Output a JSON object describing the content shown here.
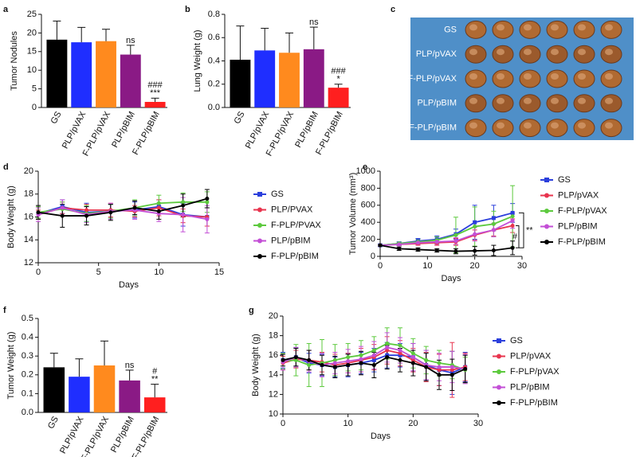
{
  "chart_data": [
    {
      "type": "bar",
      "panel": "a",
      "ylabel": "Tumor Nodules",
      "categories": [
        "GS",
        "PLP/pVAX",
        "F-PLP/pVAX",
        "PLP/pBIM",
        "F-PLP/pBIM"
      ],
      "values": [
        18.2,
        17.5,
        17.8,
        14.2,
        1.5
      ],
      "errors": [
        5,
        4,
        3.2,
        2.5,
        1
      ],
      "colors": [
        "#000000",
        "#1f2eff",
        "#ff8a1e",
        "#8a1a85",
        "#ff1f1f"
      ],
      "annotations": [
        null,
        null,
        null,
        [
          "ns"
        ],
        [
          "###",
          "***"
        ]
      ],
      "ylim": [
        0,
        25
      ],
      "yticks": [
        0,
        5,
        10,
        15,
        20,
        25
      ]
    },
    {
      "type": "bar",
      "panel": "b",
      "ylabel": "Lung Weight (g)",
      "categories": [
        "GS",
        "PLP/pVAX",
        "F-PLP/pVAX",
        "PLP/pBIM",
        "F-PLP/pBIM"
      ],
      "values": [
        0.41,
        0.49,
        0.47,
        0.5,
        0.17
      ],
      "errors": [
        0.29,
        0.19,
        0.17,
        0.19,
        0.03
      ],
      "colors": [
        "#000000",
        "#1f2eff",
        "#ff8a1e",
        "#8a1a85",
        "#ff1f1f"
      ],
      "annotations": [
        null,
        null,
        null,
        [
          "ns"
        ],
        [
          "###",
          "*"
        ]
      ],
      "ylim": [
        0,
        0.8
      ],
      "yticks": [
        {
          "value": 0,
          "label": "0.0"
        },
        0.2,
        0.4,
        0.6,
        0.8
      ]
    },
    {
      "type": "photo",
      "panel": "c",
      "row_labels": [
        "GS",
        "PLP/pVAX",
        "F-PLP/pVAX",
        "PLP/pBIM",
        "F-PLP/pBIM"
      ]
    },
    {
      "type": "line",
      "panel": "d",
      "xlabel": "Days",
      "ylabel": "Body Weight (g)",
      "x": [
        0,
        2,
        4,
        6,
        8,
        10,
        12,
        14
      ],
      "xlim": [
        0,
        15
      ],
      "xticks": [
        0,
        5,
        10,
        15
      ],
      "ylim": [
        12,
        20
      ],
      "yticks": [
        12,
        14,
        16,
        18,
        20
      ],
      "series": [
        {
          "name": "GS",
          "color": "#2b3fdc",
          "values": [
            16.3,
            16.9,
            16.4,
            16.5,
            16.6,
            16.9,
            16.2,
            16.0
          ],
          "errors": [
            0.5,
            0.6,
            0.8,
            0.6,
            0.7,
            0.6,
            1.0,
            0.8
          ]
        },
        {
          "name": "PLP/PVAX",
          "color": "#e8344e",
          "values": [
            16.2,
            16.8,
            16.6,
            16.6,
            16.5,
            16.8,
            16.1,
            16.0
          ],
          "errors": [
            0.4,
            0.5,
            0.5,
            0.6,
            0.5,
            0.7,
            0.6,
            0.8
          ]
        },
        {
          "name": "F-PLP/PVAX",
          "color": "#5cc93d",
          "values": [
            16.4,
            16.7,
            16.3,
            16.5,
            16.8,
            17.2,
            17.3,
            17.3
          ],
          "errors": [
            0.5,
            0.6,
            0.7,
            0.6,
            0.7,
            0.7,
            0.8,
            0.9
          ]
        },
        {
          "name": "PLP/pBIM",
          "color": "#c34fd6",
          "values": [
            16.2,
            16.8,
            16.2,
            16.5,
            16.6,
            16.3,
            16.2,
            15.8
          ],
          "errors": [
            0.6,
            0.7,
            0.7,
            0.7,
            0.8,
            0.7,
            1.5,
            1.2
          ]
        },
        {
          "name": "F-PLP/pBIM",
          "color": "#000000",
          "values": [
            16.4,
            16.1,
            16.1,
            16.4,
            16.8,
            16.5,
            17.0,
            17.6
          ],
          "errors": [
            0.6,
            1.0,
            0.8,
            0.7,
            0.6,
            0.7,
            1.0,
            0.8
          ]
        }
      ]
    },
    {
      "type": "line",
      "panel": "e",
      "xlabel": "Days",
      "ylabel": "Tumor Volume (mm³)",
      "x": [
        0,
        4,
        8,
        12,
        16,
        20,
        24,
        28
      ],
      "xlim": [
        0,
        30
      ],
      "xticks": [
        0,
        10,
        20,
        30
      ],
      "ylim": [
        0,
        1000
      ],
      "yticks": [
        0,
        200,
        400,
        600,
        800,
        1000
      ],
      "annotations": [
        "#",
        "**"
      ],
      "series": [
        {
          "name": "GS",
          "color": "#2b3fdc",
          "values": [
            130,
            150,
            180,
            200,
            260,
            400,
            450,
            510
          ],
          "errors": [
            10,
            20,
            30,
            40,
            60,
            200,
            150,
            110
          ]
        },
        {
          "name": "PLP/pVAX",
          "color": "#e8344e",
          "values": [
            130,
            140,
            150,
            160,
            170,
            250,
            310,
            360
          ],
          "errors": [
            10,
            15,
            20,
            30,
            40,
            60,
            70,
            80
          ]
        },
        {
          "name": "F-PLP/pVAX",
          "color": "#5cc93d",
          "values": [
            130,
            150,
            170,
            190,
            250,
            350,
            380,
            470
          ],
          "errors": [
            10,
            20,
            30,
            40,
            210,
            230,
            150,
            360
          ]
        },
        {
          "name": "PLP/pBIM",
          "color": "#c34fd6",
          "values": [
            130,
            140,
            160,
            170,
            180,
            260,
            310,
            420
          ],
          "errors": [
            10,
            15,
            25,
            30,
            40,
            80,
            80,
            90
          ]
        },
        {
          "name": "F-PLP/pBIM",
          "color": "#000000",
          "values": [
            130,
            90,
            80,
            70,
            60,
            65,
            70,
            100
          ],
          "errors": [
            10,
            20,
            20,
            20,
            30,
            50,
            60,
            80
          ]
        }
      ]
    },
    {
      "type": "bar",
      "panel": "f",
      "ylabel": "Tumor Weight (g)",
      "categories": [
        "GS",
        "PLP/pVAX",
        "F-PLP/pVAX",
        "PLP/pBIM",
        "F-PLP/pBIM"
      ],
      "values": [
        0.24,
        0.19,
        0.25,
        0.17,
        0.08
      ],
      "errors": [
        0.075,
        0.095,
        0.13,
        0.055,
        0.07
      ],
      "colors": [
        "#000000",
        "#1f2eff",
        "#ff8a1e",
        "#8a1a85",
        "#ff1f1f"
      ],
      "annotations": [
        null,
        null,
        null,
        [
          "ns"
        ],
        [
          "#",
          "**"
        ]
      ],
      "ylim": [
        0,
        0.5
      ],
      "yticks": [
        {
          "value": 0,
          "label": "0.0"
        },
        0.1,
        0.2,
        0.3,
        0.4,
        0.5
      ]
    },
    {
      "type": "line",
      "panel": "g",
      "xlabel": "Days",
      "ylabel": "Body Weight (g)",
      "x": [
        0,
        2,
        4,
        6,
        8,
        10,
        12,
        14,
        16,
        18,
        20,
        22,
        24,
        26,
        28
      ],
      "xlim": [
        0,
        30
      ],
      "xticks": [
        0,
        10,
        20,
        30
      ],
      "ylim": [
        10,
        20
      ],
      "yticks": [
        10,
        12,
        14,
        16,
        18,
        20
      ],
      "series": [
        {
          "name": "GS",
          "color": "#2b3fdc",
          "values": [
            15.5,
            15.8,
            15.2,
            15.0,
            14.8,
            15.0,
            15.2,
            15.5,
            16.0,
            16.0,
            15.8,
            15.0,
            14.5,
            14.2,
            14.8
          ],
          "errors": [
            0.8,
            1.0,
            1.0,
            1.1,
            1.0,
            1.2,
            1.1,
            1.2,
            1.3,
            1.2,
            1.4,
            1.5,
            1.6,
            2.2,
            1.5
          ]
        },
        {
          "name": "PLP/pVAX",
          "color": "#e8344e",
          "values": [
            15.2,
            15.6,
            15.5,
            15.3,
            15.0,
            15.2,
            15.5,
            15.8,
            16.5,
            16.2,
            15.5,
            14.8,
            14.5,
            14.5,
            14.8
          ],
          "errors": [
            0.7,
            0.9,
            1.0,
            1.0,
            1.1,
            1.0,
            1.2,
            1.3,
            1.4,
            1.3,
            1.2,
            1.5,
            1.6,
            2.8,
            1.4
          ]
        },
        {
          "name": "F-PLP/pVAX",
          "color": "#5cc93d",
          "values": [
            15.4,
            15.5,
            15.0,
            15.2,
            15.5,
            15.8,
            16.0,
            16.5,
            17.2,
            17.0,
            16.2,
            15.5,
            15.2,
            15.0,
            14.5
          ],
          "errors": [
            0.8,
            1.6,
            2.2,
            2.4,
            1.6,
            1.4,
            1.5,
            1.4,
            1.6,
            1.8,
            1.5,
            1.4,
            1.3,
            1.4,
            1.3
          ]
        },
        {
          "name": "PLP/pBIM",
          "color": "#c34fd6",
          "values": [
            15.3,
            15.8,
            15.4,
            15.0,
            15.2,
            15.4,
            15.6,
            16.0,
            16.8,
            16.5,
            15.8,
            15.0,
            14.8,
            14.8,
            14.6
          ],
          "errors": [
            0.8,
            1.0,
            1.1,
            1.2,
            1.1,
            1.2,
            1.3,
            1.4,
            1.5,
            1.3,
            1.4,
            1.5,
            1.4,
            1.6,
            1.5
          ]
        },
        {
          "name": "F-PLP/pBIM",
          "color": "#000000",
          "values": [
            15.5,
            15.8,
            15.5,
            15.0,
            14.8,
            15.0,
            15.2,
            15.0,
            15.8,
            15.5,
            15.2,
            14.8,
            14.0,
            14.0,
            14.6
          ],
          "errors": [
            0.6,
            0.9,
            1.0,
            1.0,
            1.1,
            1.1,
            1.2,
            1.3,
            1.2,
            1.2,
            1.3,
            1.4,
            1.5,
            1.6,
            1.4
          ]
        }
      ]
    }
  ]
}
